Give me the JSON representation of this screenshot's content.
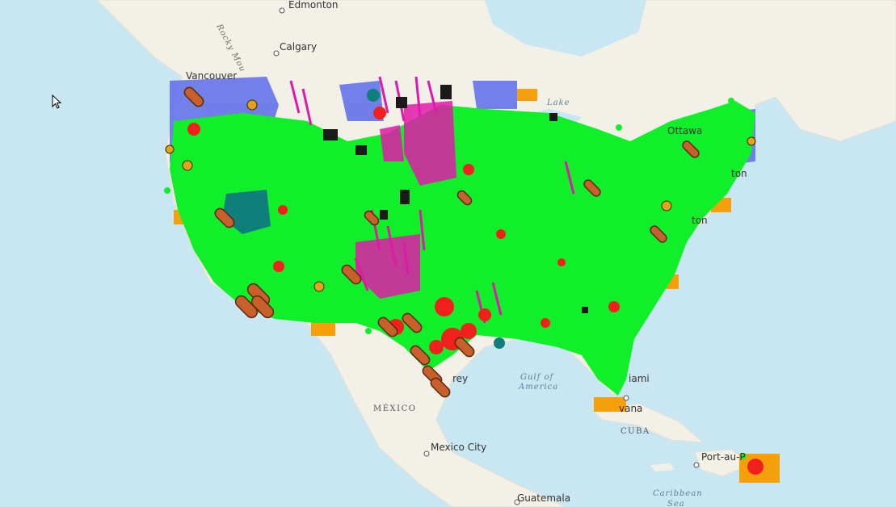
{
  "map": {
    "cities": [
      {
        "id": "edmonton",
        "label": "Edmonton"
      },
      {
        "id": "calgary",
        "label": "Calgary"
      },
      {
        "id": "vancouver",
        "label": "Vancouver"
      },
      {
        "id": "ottawa",
        "label": "Ottawa"
      },
      {
        "id": "boston",
        "label": "ton"
      },
      {
        "id": "washington",
        "label": "ton"
      },
      {
        "id": "miami",
        "label": "iami"
      },
      {
        "id": "havana",
        "label": "vana"
      },
      {
        "id": "monterrey",
        "label": "rey"
      },
      {
        "id": "mexico-city",
        "label": "Mexico City"
      },
      {
        "id": "guatemala",
        "label": "Guatemala"
      },
      {
        "id": "port-au-prince",
        "label": "Port-au-P"
      }
    ],
    "countries": [
      {
        "id": "mexico",
        "label": "MÉXICO"
      },
      {
        "id": "cuba",
        "label": "CUBA"
      }
    ],
    "water": [
      {
        "id": "gulf-of-mexico",
        "lines": [
          "Gulf of",
          "America"
        ]
      },
      {
        "id": "lake",
        "label": "Lake"
      },
      {
        "id": "caribbean-sea",
        "lines": [
          "Caribbean",
          "Sea"
        ]
      }
    ],
    "mountains": {
      "label": "Rocky Mou"
    },
    "colors": {
      "ocean": "#c9e6f3",
      "land": "#f4f1ea",
      "solar": "#11ee2a",
      "hydro": "#6b78ea",
      "wind": "#e01aa8",
      "natural_gas": "#f2201c",
      "coal": "#1a1a1a",
      "petroleum": "#c8602c",
      "storage": "#f5a00a",
      "geothermal": "#0e7f7a"
    },
    "layers": [
      "solar-icon",
      "hydro-icon",
      "wind-turbine-icon",
      "natural-gas-flame-icon",
      "coal-plant-icon",
      "petroleum-pipe-icon",
      "battery-storage-icon",
      "geothermal-icon",
      "biomass-lightbulb-icon"
    ]
  }
}
